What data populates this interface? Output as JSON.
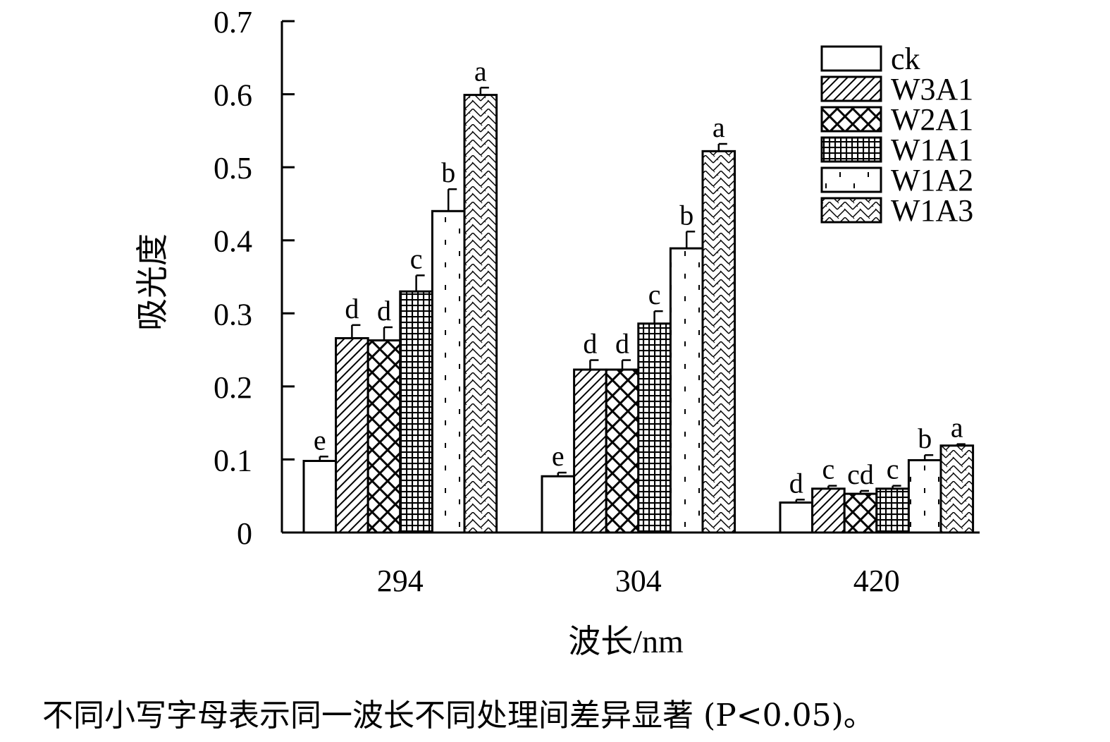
{
  "chart_data": {
    "type": "bar",
    "xlabel": "波长/nm",
    "ylabel": "吸光度",
    "categories": [
      "294",
      "304",
      "420"
    ],
    "ylim": [
      0,
      0.7
    ],
    "yticks": [
      "0",
      "0.1",
      "0.2",
      "0.3",
      "0.4",
      "0.5",
      "0.6",
      "0.7"
    ],
    "grid": false,
    "legend_position": "top-right",
    "series": [
      {
        "name": "ck",
        "pattern": "blank",
        "values": [
          0.098,
          0.077,
          0.041
        ],
        "errors": [
          0.006,
          0.005,
          0.004
        ],
        "labels": [
          "e",
          "e",
          "d"
        ]
      },
      {
        "name": "W3A1",
        "pattern": "diagonal",
        "values": [
          0.266,
          0.223,
          0.06
        ],
        "errors": [
          0.018,
          0.013,
          0.004
        ],
        "labels": [
          "d",
          "d",
          "c"
        ]
      },
      {
        "name": "W2A1",
        "pattern": "crosshatch",
        "values": [
          0.263,
          0.223,
          0.053
        ],
        "errors": [
          0.018,
          0.013,
          0.004
        ],
        "labels": [
          "d",
          "d",
          "cd"
        ]
      },
      {
        "name": "W1A1",
        "pattern": "grid",
        "values": [
          0.33,
          0.286,
          0.06
        ],
        "errors": [
          0.022,
          0.017,
          0.004
        ],
        "labels": [
          "c",
          "c",
          "c"
        ]
      },
      {
        "name": "W1A2",
        "pattern": "dots",
        "values": [
          0.44,
          0.389,
          0.099
        ],
        "errors": [
          0.03,
          0.023,
          0.007
        ],
        "labels": [
          "b",
          "b",
          "b"
        ]
      },
      {
        "name": "W1A3",
        "pattern": "zigzag",
        "values": [
          0.599,
          0.522,
          0.119
        ],
        "errors": [
          0.01,
          0.01,
          0.002
        ],
        "labels": [
          "a",
          "a",
          "a"
        ]
      }
    ]
  },
  "footnote": "不同小写字母表示同一波长不同处理间差异显著 (P<0.05)。"
}
